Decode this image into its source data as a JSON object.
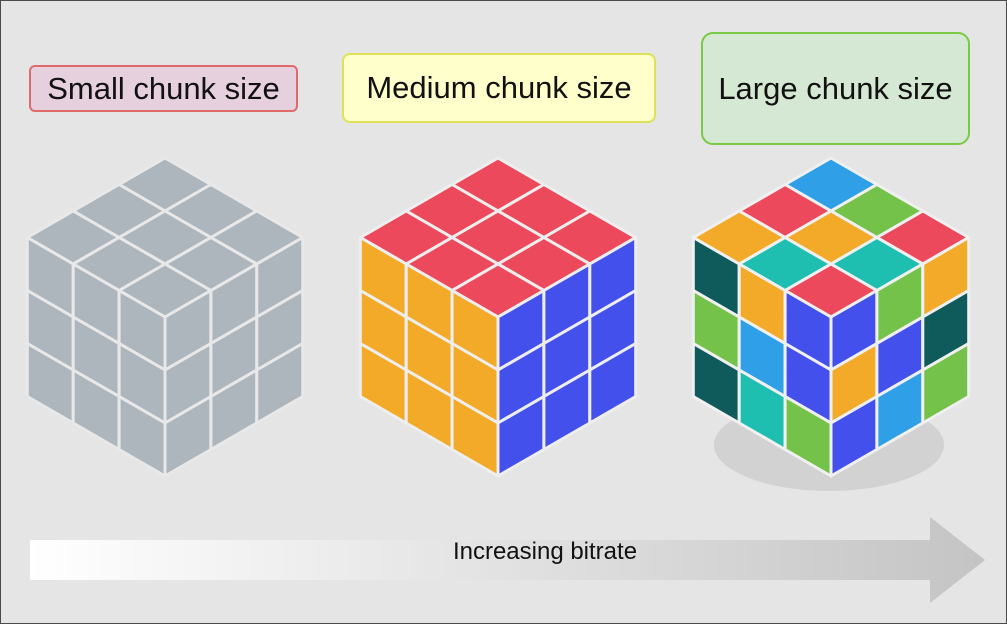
{
  "labels": {
    "small": "Small chunk size",
    "medium": "Medium chunk size",
    "large": "Large chunk size"
  },
  "arrow": {
    "text": "Increasing bitrate"
  },
  "colors": {
    "gray": "#adb5bd",
    "red": "#ec4a5c",
    "orange": "#f2aa28",
    "blue": "#4450ec",
    "lightblue": "#2fa0e8",
    "green": "#74c24a",
    "teal": "#1ebfb0",
    "darkteal": "#0f5a5a"
  }
}
